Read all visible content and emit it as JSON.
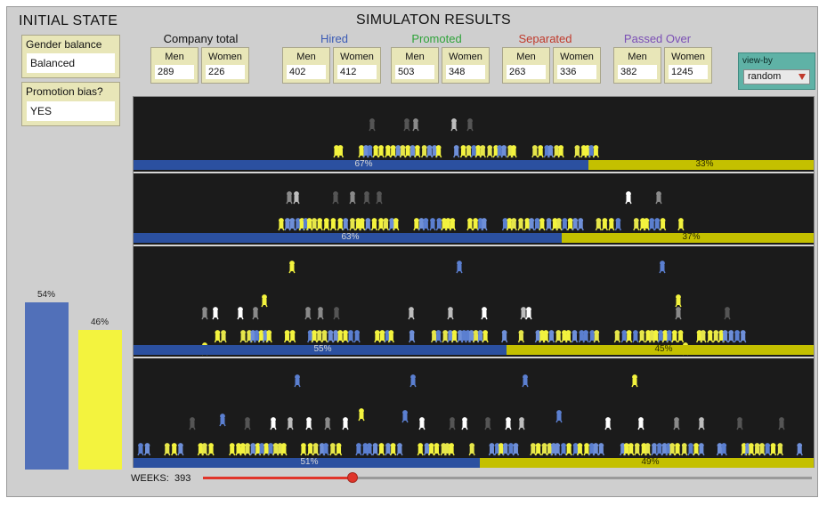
{
  "initial_state": {
    "title": "INITIAL STATE",
    "gender_balance": {
      "label": "Gender balance",
      "value": "Balanced"
    },
    "promotion_bias": {
      "label": "Promotion bias?",
      "value": "YES"
    },
    "bar_men_pct": "54%",
    "bar_women_pct": "46%",
    "colors": {
      "men": "#5170b9",
      "women": "#f3f33e"
    }
  },
  "results": {
    "title": "SIMULATON RESULTS",
    "groups": [
      {
        "label": "Company total",
        "color": "#111111",
        "men_label": "Men",
        "women_label": "Women",
        "men": "289",
        "women": "226"
      },
      {
        "label": "Hired",
        "color": "#3b5bb5",
        "men_label": "Men",
        "women_label": "Women",
        "men": "402",
        "women": "412"
      },
      {
        "label": "Promoted",
        "color": "#2fa33a",
        "men_label": "Men",
        "women_label": "Women",
        "men": "503",
        "women": "348"
      },
      {
        "label": "Separated",
        "color": "#c0392b",
        "men_label": "Men",
        "women_label": "Women",
        "men": "263",
        "women": "336"
      },
      {
        "label": "Passed Over",
        "color": "#7b4fb5",
        "men_label": "Men",
        "women_label": "Women",
        "men": "382",
        "women": "1245"
      }
    ],
    "view_by": {
      "label": "view-by",
      "value": "random"
    }
  },
  "levels": [
    {
      "men_pct_label": "67%",
      "women_pct_label": "33%",
      "men_fraction": 0.67
    },
    {
      "men_pct_label": "63%",
      "women_pct_label": "37%",
      "men_fraction": 0.63
    },
    {
      "men_pct_label": "55%",
      "women_pct_label": "45%",
      "men_fraction": 0.55
    },
    {
      "men_pct_label": "51%",
      "women_pct_label": "49%",
      "men_fraction": 0.51
    }
  ],
  "weeks": {
    "label": "WEEKS:",
    "value": "393",
    "progress": 0.245
  }
}
